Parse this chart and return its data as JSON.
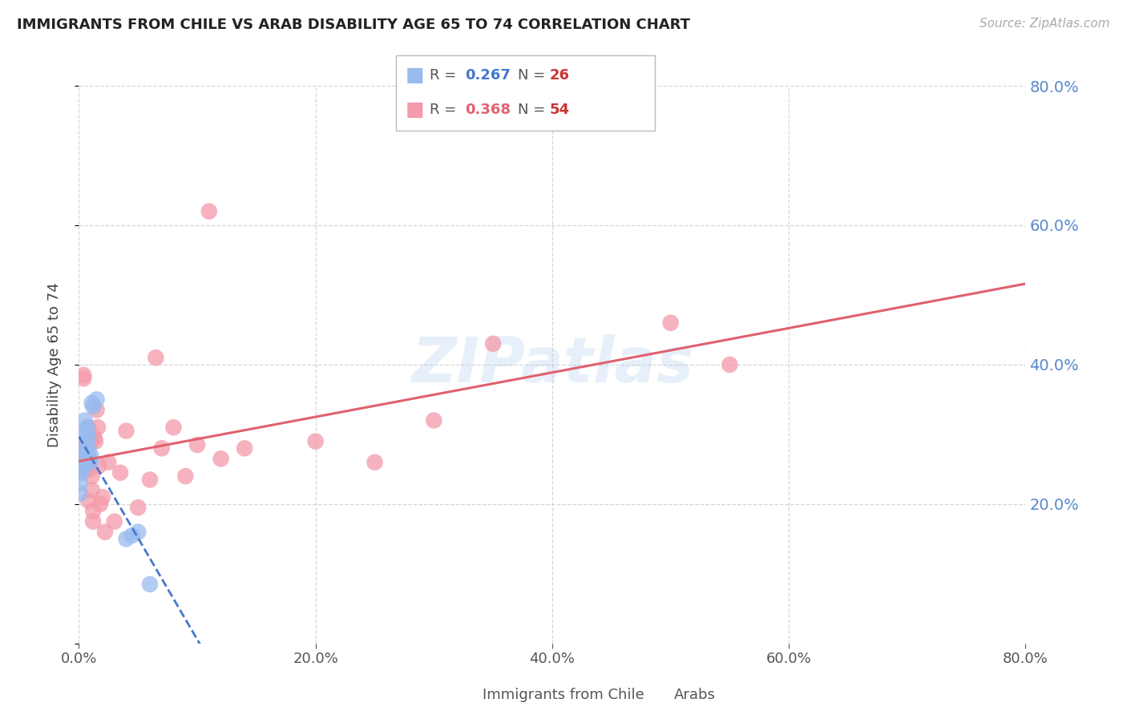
{
  "title": "IMMIGRANTS FROM CHILE VS ARAB DISABILITY AGE 65 TO 74 CORRELATION CHART",
  "source": "Source: ZipAtlas.com",
  "ylabel": "Disability Age 65 to 74",
  "xlim": [
    0.0,
    0.8
  ],
  "ylim": [
    0.0,
    0.8
  ],
  "yticks_right": [
    0.2,
    0.4,
    0.6,
    0.8
  ],
  "xticks": [
    0.0,
    0.2,
    0.4,
    0.6,
    0.8
  ],
  "chile_R": "0.267",
  "chile_N": "26",
  "arab_R": "0.368",
  "arab_N": "54",
  "chile_dot_color": "#99bbee",
  "arab_dot_color": "#f49aaa",
  "chile_line_color": "#4477cc",
  "arab_line_color": "#e06070",
  "watermark": "ZIPatlas",
  "chile_x": [
    0.001,
    0.001,
    0.002,
    0.002,
    0.003,
    0.003,
    0.004,
    0.004,
    0.005,
    0.005,
    0.006,
    0.006,
    0.007,
    0.007,
    0.008,
    0.008,
    0.009,
    0.01,
    0.01,
    0.011,
    0.012,
    0.015,
    0.04,
    0.045,
    0.05,
    0.06
  ],
  "chile_y": [
    0.23,
    0.215,
    0.255,
    0.245,
    0.27,
    0.25,
    0.265,
    0.26,
    0.275,
    0.32,
    0.305,
    0.29,
    0.3,
    0.31,
    0.295,
    0.28,
    0.265,
    0.26,
    0.27,
    0.345,
    0.34,
    0.35,
    0.15,
    0.155,
    0.16,
    0.085
  ],
  "arab_x": [
    0.001,
    0.001,
    0.002,
    0.002,
    0.003,
    0.003,
    0.003,
    0.004,
    0.004,
    0.005,
    0.005,
    0.006,
    0.006,
    0.006,
    0.007,
    0.007,
    0.008,
    0.008,
    0.009,
    0.009,
    0.01,
    0.01,
    0.011,
    0.011,
    0.012,
    0.012,
    0.013,
    0.014,
    0.015,
    0.016,
    0.017,
    0.018,
    0.02,
    0.022,
    0.025,
    0.03,
    0.035,
    0.04,
    0.05,
    0.06,
    0.065,
    0.07,
    0.08,
    0.09,
    0.1,
    0.11,
    0.12,
    0.14,
    0.2,
    0.25,
    0.3,
    0.35,
    0.5,
    0.55
  ],
  "arab_y": [
    0.26,
    0.27,
    0.255,
    0.265,
    0.28,
    0.26,
    0.275,
    0.38,
    0.385,
    0.27,
    0.26,
    0.25,
    0.255,
    0.265,
    0.27,
    0.26,
    0.205,
    0.31,
    0.25,
    0.26,
    0.29,
    0.3,
    0.22,
    0.24,
    0.175,
    0.19,
    0.295,
    0.29,
    0.335,
    0.31,
    0.255,
    0.2,
    0.21,
    0.16,
    0.26,
    0.175,
    0.245,
    0.305,
    0.195,
    0.235,
    0.41,
    0.28,
    0.31,
    0.24,
    0.285,
    0.62,
    0.265,
    0.28,
    0.29,
    0.26,
    0.32,
    0.43,
    0.46,
    0.4
  ]
}
